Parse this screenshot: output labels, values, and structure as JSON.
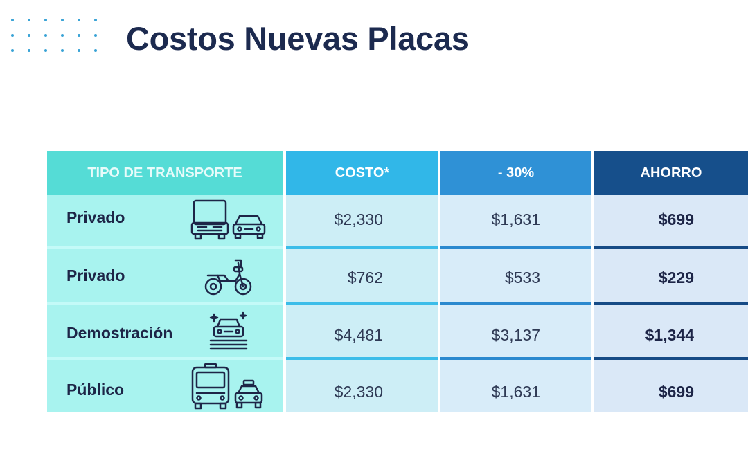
{
  "title": "Costos Nuevas Placas",
  "icons": {
    "decor": "dots-grid",
    "row_icons": [
      "truck-and-car-icon",
      "motorcycle-icon",
      "showroom-car-icon",
      "bus-and-taxi-icon"
    ]
  },
  "colors": {
    "title": "#1c2a4f",
    "header_tipo": "#55dcd6",
    "header_costo": "#31b7e8",
    "header_descuento": "#2f91d6",
    "header_ahorro": "#164f8b"
  },
  "table": {
    "headers": [
      "TIPO DE TRANSPORTE",
      "COSTO*",
      "- 30%",
      "AHORRO"
    ],
    "rows": [
      {
        "tipo": "Privado",
        "costo": "$2,330",
        "descuento": "$1,631",
        "ahorro": "$699"
      },
      {
        "tipo": "Privado",
        "costo": "$762",
        "descuento": "$533",
        "ahorro": "$229"
      },
      {
        "tipo": "Demostración",
        "costo": "$4,481",
        "descuento": "$3,137",
        "ahorro": "$1,344"
      },
      {
        "tipo": "Público",
        "costo": "$2,330",
        "descuento": "$1,631",
        "ahorro": "$699"
      }
    ]
  }
}
